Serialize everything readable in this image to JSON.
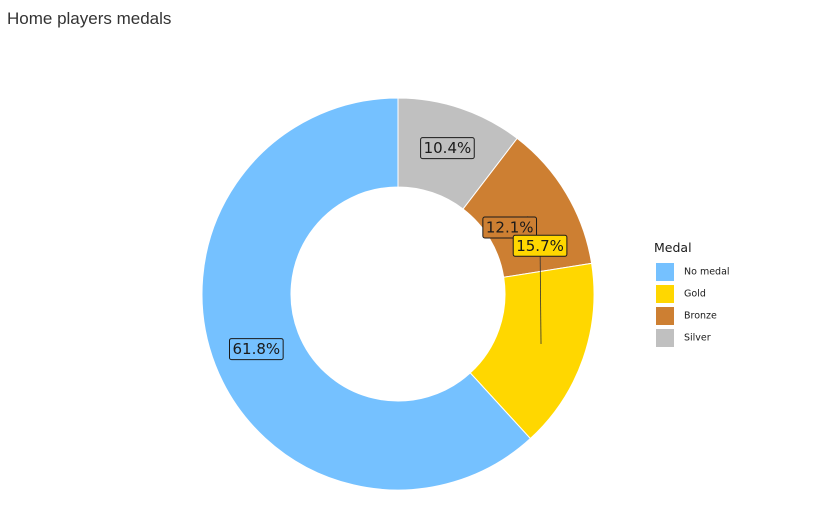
{
  "page": {
    "title": "Home players medals"
  },
  "chart_data": {
    "type": "pie",
    "variant": "donut",
    "title": "Home players medals",
    "legend_title": "Medal",
    "legend_position": "right",
    "categories": [
      "No medal",
      "Gold",
      "Bronze",
      "Silver"
    ],
    "values": [
      61.8,
      15.7,
      12.1,
      10.4
    ],
    "labels": [
      "61.8%",
      "15.7%",
      "12.1%",
      "10.4%"
    ],
    "colors": {
      "No medal": "#75C1FF",
      "Gold": "#FFD700",
      "Bronze": "#CD7F32",
      "Silver": "#C0C0C0"
    },
    "slice_order_clockwise_from_top": [
      "Silver",
      "Bronze",
      "Gold",
      "No medal"
    ]
  }
}
